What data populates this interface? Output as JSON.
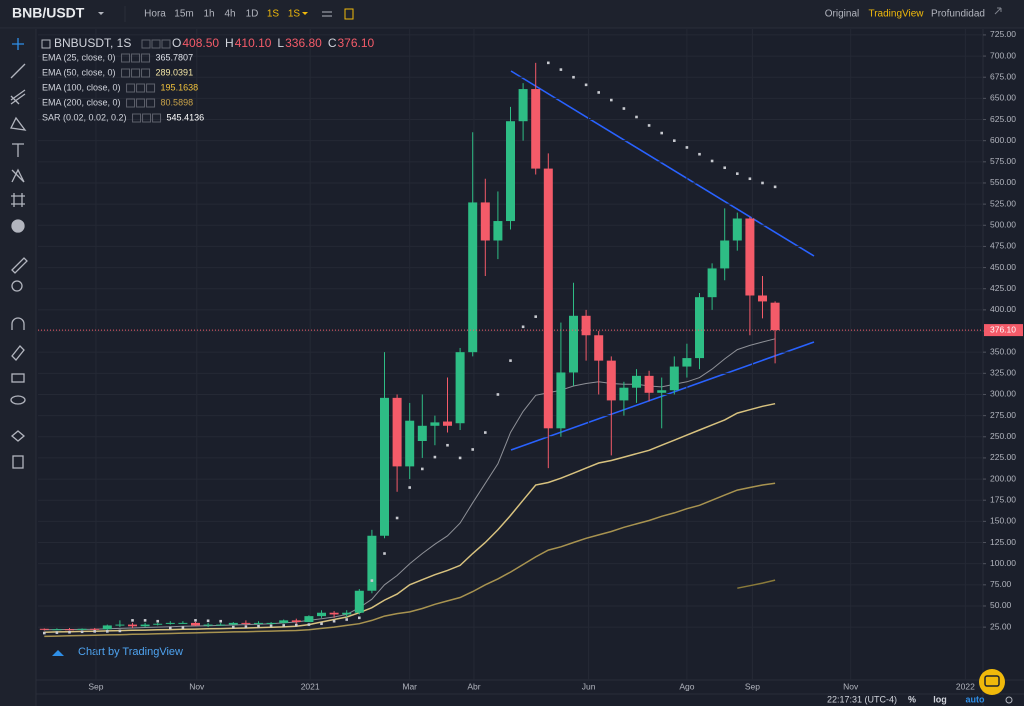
{
  "toolbar": {
    "symbol": "BNB/USDT",
    "intervals": [
      "Hora",
      "15m",
      "1h",
      "4h",
      "1D",
      "1S"
    ],
    "dropdown": "1S",
    "views": [
      "Original",
      "TradingView",
      "Profundidad"
    ]
  },
  "legend": {
    "title": "BNBUSDT, 1S",
    "ohlc": [
      {
        "key": "O",
        "value": "408.50"
      },
      {
        "key": "H",
        "value": "410.10"
      },
      {
        "key": "L",
        "value": "336.80"
      },
      {
        "key": "C",
        "value": "376.10"
      }
    ]
  },
  "watermark": "Chart by TradingView",
  "status": {
    "time": "22:17:31 (UTC-4)",
    "buttons": [
      "%",
      "log",
      "auto"
    ]
  },
  "chart_data": {
    "type": "candlestick",
    "x": [
      0,
      1,
      2,
      3,
      4,
      5,
      6,
      7,
      8,
      9,
      10,
      11,
      12,
      13,
      14,
      15,
      16,
      17,
      18,
      19,
      20,
      21,
      22,
      23,
      24,
      25,
      26,
      27,
      28,
      29,
      30,
      31,
      32,
      33,
      34,
      35,
      36,
      37,
      38,
      39,
      40,
      41,
      42,
      43,
      44,
      45,
      46,
      47,
      48,
      49,
      50,
      51,
      52,
      53,
      54,
      55,
      56,
      57,
      58
    ],
    "open": [
      23,
      22,
      22.5,
      21.9,
      23,
      22.5,
      27,
      28,
      26,
      28,
      29,
      30,
      30,
      27,
      28,
      28,
      30,
      29,
      30,
      30,
      33,
      31,
      38,
      42,
      40,
      42,
      68,
      133,
      296,
      215,
      245,
      263,
      268,
      266,
      350,
      527,
      482,
      505,
      623,
      661,
      567,
      260,
      326,
      393,
      370,
      340,
      293,
      308,
      322,
      302,
      305,
      333,
      343,
      415,
      449,
      482,
      508,
      417,
      408.5
    ],
    "high": [
      23.5,
      23.5,
      24,
      23.5,
      24,
      28,
      33,
      30,
      30,
      30,
      32,
      32,
      31,
      30,
      30,
      31,
      33,
      32,
      31,
      34,
      35,
      39,
      45,
      44,
      45,
      70,
      140,
      350,
      300,
      290,
      300,
      275,
      320,
      355,
      610,
      555,
      540,
      640,
      668,
      692,
      585,
      385,
      432,
      400,
      375,
      345,
      315,
      330,
      328,
      320,
      345,
      360,
      420,
      455,
      520,
      515,
      510,
      440,
      410.1
    ],
    "low": [
      21,
      21.5,
      21,
      21.5,
      20,
      21,
      25,
      24,
      25,
      27,
      28,
      29,
      26,
      25,
      27,
      27,
      27,
      28,
      28,
      29,
      29,
      31,
      36,
      36,
      37,
      40,
      65,
      130,
      185,
      200,
      225,
      240,
      255,
      258,
      345,
      440,
      460,
      495,
      600,
      560,
      213,
      250,
      310,
      340,
      300,
      228,
      275,
      290,
      292,
      260,
      300,
      320,
      330,
      400,
      435,
      470,
      370,
      390,
      336.8
    ],
    "close": [
      22,
      22.5,
      21.9,
      23,
      22.5,
      27,
      28,
      26,
      28,
      29,
      30,
      30,
      27,
      28,
      28,
      30,
      29,
      30,
      30,
      33,
      31,
      38,
      42,
      40,
      42,
      68,
      133,
      296,
      215,
      269,
      263,
      267,
      263,
      350,
      527,
      482,
      505,
      623,
      661,
      567,
      260,
      326,
      393,
      370,
      340,
      293,
      308,
      322,
      302,
      305,
      333,
      343,
      415,
      449,
      482,
      508,
      417,
      410,
      376.1
    ],
    "up_color": "#2ebd85",
    "down_color": "#f45b69",
    "series": [
      {
        "name": "EMA (25, close, 0)",
        "color": "#8e9097",
        "label_color": "#e0e3eb",
        "last_label": "365.7807",
        "values": [
          22,
          22.1,
          22.2,
          22.3,
          22.4,
          23,
          23.5,
          24,
          24.5,
          25,
          25.5,
          26,
          26.3,
          26.6,
          27,
          27.5,
          28,
          28.5,
          29,
          30,
          31,
          33,
          35,
          37,
          40,
          48,
          58,
          75,
          86,
          100,
          112,
          123,
          133,
          148,
          172,
          195,
          218,
          255,
          280,
          299,
          302,
          305,
          310,
          313,
          315,
          313,
          312,
          312,
          310,
          309,
          312,
          315,
          320,
          330,
          342,
          353,
          358,
          362,
          365.7807
        ]
      },
      {
        "name": "EMA (50, close, 0)",
        "color": "#d8c27f",
        "label_color": "#f3e6a6",
        "last_label": "289.0391",
        "values": [
          19,
          19.3,
          19.6,
          19.9,
          20.2,
          20.5,
          20.9,
          21.2,
          21.5,
          21.8,
          22.1,
          22.4,
          22.7,
          23,
          23.3,
          23.6,
          24,
          24.4,
          24.8,
          25.3,
          26,
          28,
          31,
          34,
          37,
          42,
          48,
          57,
          64,
          75,
          81,
          87,
          92,
          98,
          112,
          125,
          140,
          157,
          175,
          193,
          196,
          201,
          207,
          213,
          219,
          222,
          226,
          230,
          234,
          240,
          246,
          252,
          258,
          264,
          270,
          278,
          282,
          286,
          289.0391
        ]
      },
      {
        "name": "EMA (100, close, 0)",
        "color": "#a89350",
        "label_color": "#f0c23c",
        "last_label": "195.1638",
        "values": [
          14,
          14.4,
          14.7,
          15.1,
          15.4,
          15.8,
          16.1,
          16.5,
          16.8,
          17.2,
          17.5,
          17.9,
          18.2,
          18.6,
          18.9,
          19.3,
          19.6,
          20,
          20.3,
          20.7,
          21,
          22,
          23.5,
          25,
          27,
          29,
          33,
          38,
          41,
          43,
          47,
          52,
          56,
          60,
          67,
          75,
          82,
          90,
          99,
          108,
          116,
          120,
          125,
          130,
          134,
          138,
          143,
          147,
          151,
          156,
          160,
          165,
          169,
          175,
          181,
          187,
          190,
          193,
          195.1638
        ]
      },
      {
        "name": "EMA (200, close, 0)",
        "color": "#8a7a3a",
        "label_color": "#c9a34a",
        "last_label": "80.5898",
        "values": [
          null,
          null,
          null,
          null,
          null,
          null,
          null,
          null,
          null,
          null,
          null,
          null,
          null,
          null,
          null,
          null,
          null,
          null,
          null,
          null,
          null,
          null,
          null,
          null,
          null,
          null,
          null,
          null,
          null,
          null,
          null,
          null,
          null,
          null,
          null,
          null,
          null,
          null,
          null,
          null,
          null,
          null,
          null,
          null,
          null,
          null,
          null,
          null,
          null,
          null,
          null,
          null,
          null,
          null,
          null,
          71,
          74,
          77,
          80.5898
        ]
      }
    ],
    "sar": {
      "name": "SAR (0.02, 0.02, 0.2)",
      "color": "#c8cad0",
      "label_color": "#ffffff",
      "last_label": "545.4136",
      "values": [
        18,
        18.5,
        19,
        19.5,
        20,
        20,
        20.5,
        33,
        33,
        32,
        24,
        24.5,
        33,
        32.5,
        32,
        25,
        25.5,
        26,
        26.5,
        27,
        27.5,
        28,
        29,
        32,
        34,
        36,
        80,
        112,
        154,
        190,
        212,
        226,
        240,
        225,
        235,
        255,
        300,
        340,
        380,
        392,
        692,
        684,
        675,
        666,
        657,
        648,
        638,
        628,
        618,
        609,
        600,
        592,
        584,
        576,
        568,
        561,
        555,
        550,
        545.4136
      ]
    },
    "price_line": {
      "value": 376.1,
      "label": "376.10",
      "color": "#f45b69"
    },
    "xlim": [
      -0.5,
      74.5
    ],
    "xticks": [
      {
        "value": 4.1,
        "label": "Sep"
      },
      {
        "value": 12.1,
        "label": "Nov"
      },
      {
        "value": 21.1,
        "label": "2021"
      },
      {
        "value": 29,
        "label": "Mar"
      },
      {
        "value": 34.1,
        "label": "Abr"
      },
      {
        "value": 43.2,
        "label": "Jun"
      },
      {
        "value": 51,
        "label": "Ago"
      },
      {
        "value": 56.2,
        "label": "Sep"
      },
      {
        "value": 64,
        "label": "Nov"
      },
      {
        "value": 73.1,
        "label": "2022"
      }
    ],
    "ylim": [
      -37.5,
      732
    ],
    "yticks": [
      {
        "value": 25,
        "label": "25.00"
      },
      {
        "value": 50,
        "label": "50.00"
      },
      {
        "value": 75,
        "label": "75.00"
      },
      {
        "value": 100,
        "label": "100.00"
      },
      {
        "value": 125,
        "label": "125.00"
      },
      {
        "value": 150,
        "label": "150.00"
      },
      {
        "value": 175,
        "label": "175.00"
      },
      {
        "value": 200,
        "label": "200.00"
      },
      {
        "value": 225,
        "label": "225.00"
      },
      {
        "value": 250,
        "label": "250.00"
      },
      {
        "value": 275,
        "label": "275.00"
      },
      {
        "value": 300,
        "label": "300.00"
      },
      {
        "value": 325,
        "label": "325.00"
      },
      {
        "value": 350,
        "label": "350.00"
      },
      {
        "value": 375,
        "label": "375.00"
      },
      {
        "value": 400,
        "label": "400.00"
      },
      {
        "value": 425,
        "label": "425.00"
      },
      {
        "value": 450,
        "label": "450.00"
      },
      {
        "value": 475,
        "label": "475.00"
      },
      {
        "value": 500,
        "label": "500.00"
      },
      {
        "value": 525,
        "label": "525.00"
      },
      {
        "value": 550,
        "label": "550.00"
      },
      {
        "value": 575,
        "label": "575.00"
      },
      {
        "value": 600,
        "label": "600.00"
      },
      {
        "value": 625,
        "label": "625.00"
      },
      {
        "value": 650,
        "label": "650.00"
      },
      {
        "value": 675,
        "label": "675.00"
      },
      {
        "value": 700,
        "label": "700.00"
      },
      {
        "value": 725,
        "label": "725.00"
      }
    ],
    "grid": true
  }
}
